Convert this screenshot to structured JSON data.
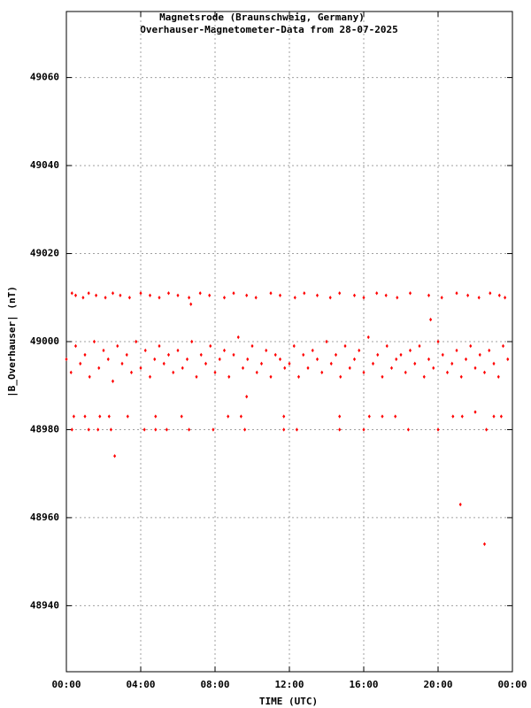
{
  "chart_data": {
    "type": "scatter",
    "title": "Magnetsrode (Braunschweig, Germany)",
    "subtitle": "Overhauser-Magnetometer-Data from 28-07-2025",
    "x_label": "TIME (UTC)",
    "y_label": "|B_Overhauser| (nT)",
    "xlim": [
      0,
      24
    ],
    "xticks": [
      {
        "value": 0,
        "label": "00:00"
      },
      {
        "value": 4,
        "label": "04:00"
      },
      {
        "value": 8,
        "label": "08:00"
      },
      {
        "value": 12,
        "label": "12:00"
      },
      {
        "value": 16,
        "label": "16:00"
      },
      {
        "value": 20,
        "label": "20:00"
      },
      {
        "value": 24,
        "label": "00:00"
      }
    ],
    "ylim": [
      48925,
      49075
    ],
    "yticks": [
      48940,
      48960,
      48980,
      49000,
      49020,
      49040,
      49060
    ],
    "grid": true,
    "x": [
      0,
      0.25,
      0.5,
      0.75,
      1,
      1.25,
      1.5,
      1.75,
      2,
      2.25,
      2.5,
      2.75,
      3,
      3.25,
      3.5,
      3.75,
      4,
      4.25,
      4.5,
      4.75,
      5,
      5.25,
      5.5,
      5.75,
      6,
      6.25,
      6.5,
      6.75,
      7,
      7.25,
      7.5,
      7.75,
      8,
      8.25,
      8.5,
      8.75,
      9,
      9.25,
      9.5,
      9.75,
      10,
      10.25,
      10.5,
      10.75,
      11,
      11.25,
      11.5,
      11.75,
      12,
      12.25,
      12.5,
      12.75,
      13,
      13.25,
      13.5,
      13.75,
      14,
      14.25,
      14.5,
      14.75,
      15,
      15.25,
      15.5,
      15.75,
      16,
      16.25,
      16.5,
      16.75,
      17,
      17.25,
      17.5,
      17.75,
      18,
      18.25,
      18.5,
      18.75,
      19,
      19.25,
      19.5,
      19.75,
      20,
      20.25,
      20.5,
      20.75,
      21,
      21.25,
      21.5,
      21.75,
      22,
      22.25,
      22.5,
      22.75,
      23,
      23.25,
      23.5,
      23.75,
      0.3,
      0.5,
      0.9,
      1.2,
      1.6,
      2.1,
      2.5,
      2.9,
      3.4,
      4.0,
      4.5,
      5.0,
      5.5,
      6.0,
      6.6,
      7.2,
      7.7,
      8.5,
      9.0,
      9.7,
      10.2,
      11.0,
      11.5,
      12.3,
      12.8,
      13.5,
      14.2,
      14.7,
      15.5,
      16.0,
      16.7,
      17.2,
      17.8,
      18.5,
      19.5,
      20.2,
      21.0,
      21.6,
      22.2,
      22.8,
      23.3,
      23.6,
      0.4,
      1.0,
      1.8,
      2.3,
      3.3,
      4.8,
      6.2,
      8.7,
      9.4,
      11.7,
      14.7,
      16.3,
      17.0,
      17.7,
      20.8,
      21.3,
      23.0,
      23.4,
      0.3,
      1.2,
      1.7,
      2.4,
      4.2,
      4.8,
      5.4,
      6.6,
      7.9,
      9.6,
      11.7,
      12.4,
      14.7,
      16.0,
      18.4,
      20.0,
      22.6,
      2.6,
      9.7,
      19.6,
      21.2,
      22.5,
      22.0,
      6.7
    ],
    "series": [
      {
        "color": "#ff0000",
        "values": [
          48996,
          48993,
          48999,
          48995,
          48997,
          48992,
          49000,
          48994,
          48998,
          48996,
          48991,
          48999,
          48995,
          48997,
          48993,
          49000,
          48994,
          48998,
          48992,
          48996,
          48999,
          48995,
          48997,
          48993,
          48998,
          48994,
          48996,
          49000,
          48992,
          48997,
          48995,
          48999,
          48993,
          48996,
          48998,
          48992,
          48997,
          49001,
          48994,
          48996,
          48999,
          48993,
          48995,
          48998,
          48992,
          48997,
          48996,
          48994,
          48995,
          48999,
          48992,
          48997,
          48994,
          48998,
          48996,
          48993,
          49000,
          48995,
          48997,
          48992,
          48999,
          48994,
          48996,
          48998,
          48993,
          49001,
          48995,
          48997,
          48992,
          48999,
          48994,
          48996,
          48997,
          48993,
          48998,
          48995,
          48999,
          48992,
          48996,
          48994,
          49000,
          48997,
          48993,
          48995,
          48998,
          48992,
          48996,
          48999,
          48994,
          48997,
          48993,
          48998,
          48995,
          48992,
          48999,
          48996,
          49011,
          49010.5,
          49010,
          49011,
          49010.5,
          49010,
          49011,
          49010.5,
          49010,
          49011,
          49010.5,
          49010,
          49011,
          49010.5,
          49010,
          49011,
          49010.5,
          49010,
          49011,
          49010.5,
          49010,
          49011,
          49010.5,
          49010,
          49011,
          49010.5,
          49010,
          49011,
          49010.5,
          49010,
          49011,
          49010.5,
          49010,
          49011,
          49010.5,
          49010,
          49011,
          49010.5,
          49010,
          49011,
          49010.5,
          49010,
          48983,
          48983,
          48983,
          48983,
          48983,
          48983,
          48983,
          48983,
          48983,
          48983,
          48983,
          48983,
          48983,
          48983,
          48983,
          48983,
          48983,
          48983,
          48980,
          48980,
          48980,
          48980,
          48980,
          48980,
          48980,
          48980,
          48980,
          48980,
          48980,
          48980,
          48980,
          48980,
          48980,
          48980,
          48980,
          48974,
          48987.5,
          49005,
          48963,
          48954,
          48984,
          49008.5
        ]
      }
    ]
  }
}
